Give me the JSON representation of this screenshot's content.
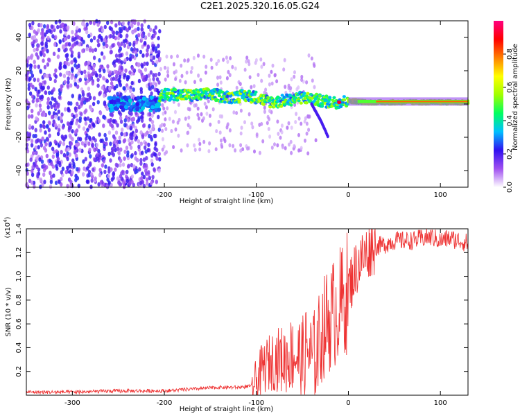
{
  "title": "C2E1.2025.320.16.05.G24",
  "chart_data": [
    {
      "type": "heatmap",
      "name": "spectrogram",
      "xlabel": "Height of straight line (km)",
      "ylabel": "Frequency (Hz)",
      "xlim": [
        -350,
        130
      ],
      "ylim": [
        -50,
        50
      ],
      "xticks": [
        -300,
        -200,
        -100,
        0,
        100
      ],
      "yticks": [
        -40,
        -20,
        0,
        20,
        40
      ],
      "xtick_labels": [
        "-300",
        "-200",
        "-100",
        "0",
        "100"
      ],
      "ytick_labels": [
        "-40",
        "-20",
        "0",
        "20",
        "40"
      ],
      "noise_region_x": [
        -350,
        -205
      ],
      "signal_trace": {
        "x": [
          -205,
          -190,
          -170,
          -150,
          -130,
          -110,
          -100,
          -90,
          -80,
          -70,
          -60,
          -50,
          -40,
          -30,
          -20,
          -10,
          0,
          20,
          40,
          60,
          80,
          100,
          130
        ],
        "y": [
          5,
          6,
          5,
          6,
          4,
          5,
          4,
          2,
          1,
          2,
          3,
          4,
          3,
          2,
          1,
          1,
          2,
          1,
          1,
          1,
          1,
          1,
          1
        ]
      },
      "side_branch": {
        "x": [
          -40,
          -35,
          -30,
          -25,
          -22
        ],
        "y": [
          0,
          -5,
          -10,
          -16,
          -20
        ]
      },
      "colorbar": {
        "label": "Normalized spectral amplitude",
        "range": [
          0.0,
          1.0
        ],
        "ticks": [
          0.0,
          0.2,
          0.4,
          0.6,
          0.8
        ],
        "tick_labels": [
          "0.0",
          "0.2",
          "0.4",
          "0.6",
          "0.8"
        ],
        "colors": [
          "#ffffff",
          "#a050f0",
          "#3010f0",
          "#00c0ff",
          "#00ff60",
          "#a0ff00",
          "#ffff00",
          "#ff8000",
          "#ff0000",
          "#ff0080"
        ]
      }
    },
    {
      "type": "line",
      "name": "snr",
      "xlabel": "Height of straight line (km)",
      "ylabel": "SNR (10 * v/v)",
      "scale_label": "(x10",
      "scale_exp": "4",
      "scale_close": ")",
      "xlim": [
        -350,
        130
      ],
      "ylim": [
        0,
        1.4
      ],
      "xticks": [
        -300,
        -200,
        -100,
        0,
        100
      ],
      "yticks": [
        0.2,
        0.4,
        0.6,
        0.8,
        1.0,
        1.2,
        1.4
      ],
      "xtick_labels": [
        "-300",
        "-200",
        "-100",
        "0",
        "100"
      ],
      "ytick_labels": [
        "0.2",
        "0.4",
        "0.6",
        "0.8",
        "1.0",
        "1.2",
        "1.4"
      ],
      "color": "#ee3333",
      "series": [
        {
          "name": "SNR",
          "x": [
            -350,
            -300,
            -250,
            -200,
            -160,
            -140,
            -120,
            -105,
            -100,
            -95,
            -90,
            -80,
            -70,
            -60,
            -50,
            -45,
            -40,
            -35,
            -30,
            -25,
            -20,
            -15,
            -10,
            -5,
            0,
            5,
            10,
            15,
            20,
            25,
            30,
            40,
            50,
            60,
            70,
            80,
            90,
            100,
            110,
            120,
            130
          ],
          "y": [
            0.02,
            0.02,
            0.03,
            0.03,
            0.05,
            0.06,
            0.06,
            0.07,
            0.1,
            0.2,
            0.25,
            0.3,
            0.3,
            0.35,
            0.3,
            0.4,
            0.3,
            0.35,
            0.5,
            0.6,
            0.65,
            0.7,
            0.75,
            0.8,
            0.9,
            1.0,
            1.1,
            1.15,
            1.2,
            1.25,
            1.25,
            1.27,
            1.3,
            1.3,
            1.3,
            1.32,
            1.33,
            1.3,
            1.32,
            1.3,
            1.28
          ]
        }
      ]
    }
  ]
}
